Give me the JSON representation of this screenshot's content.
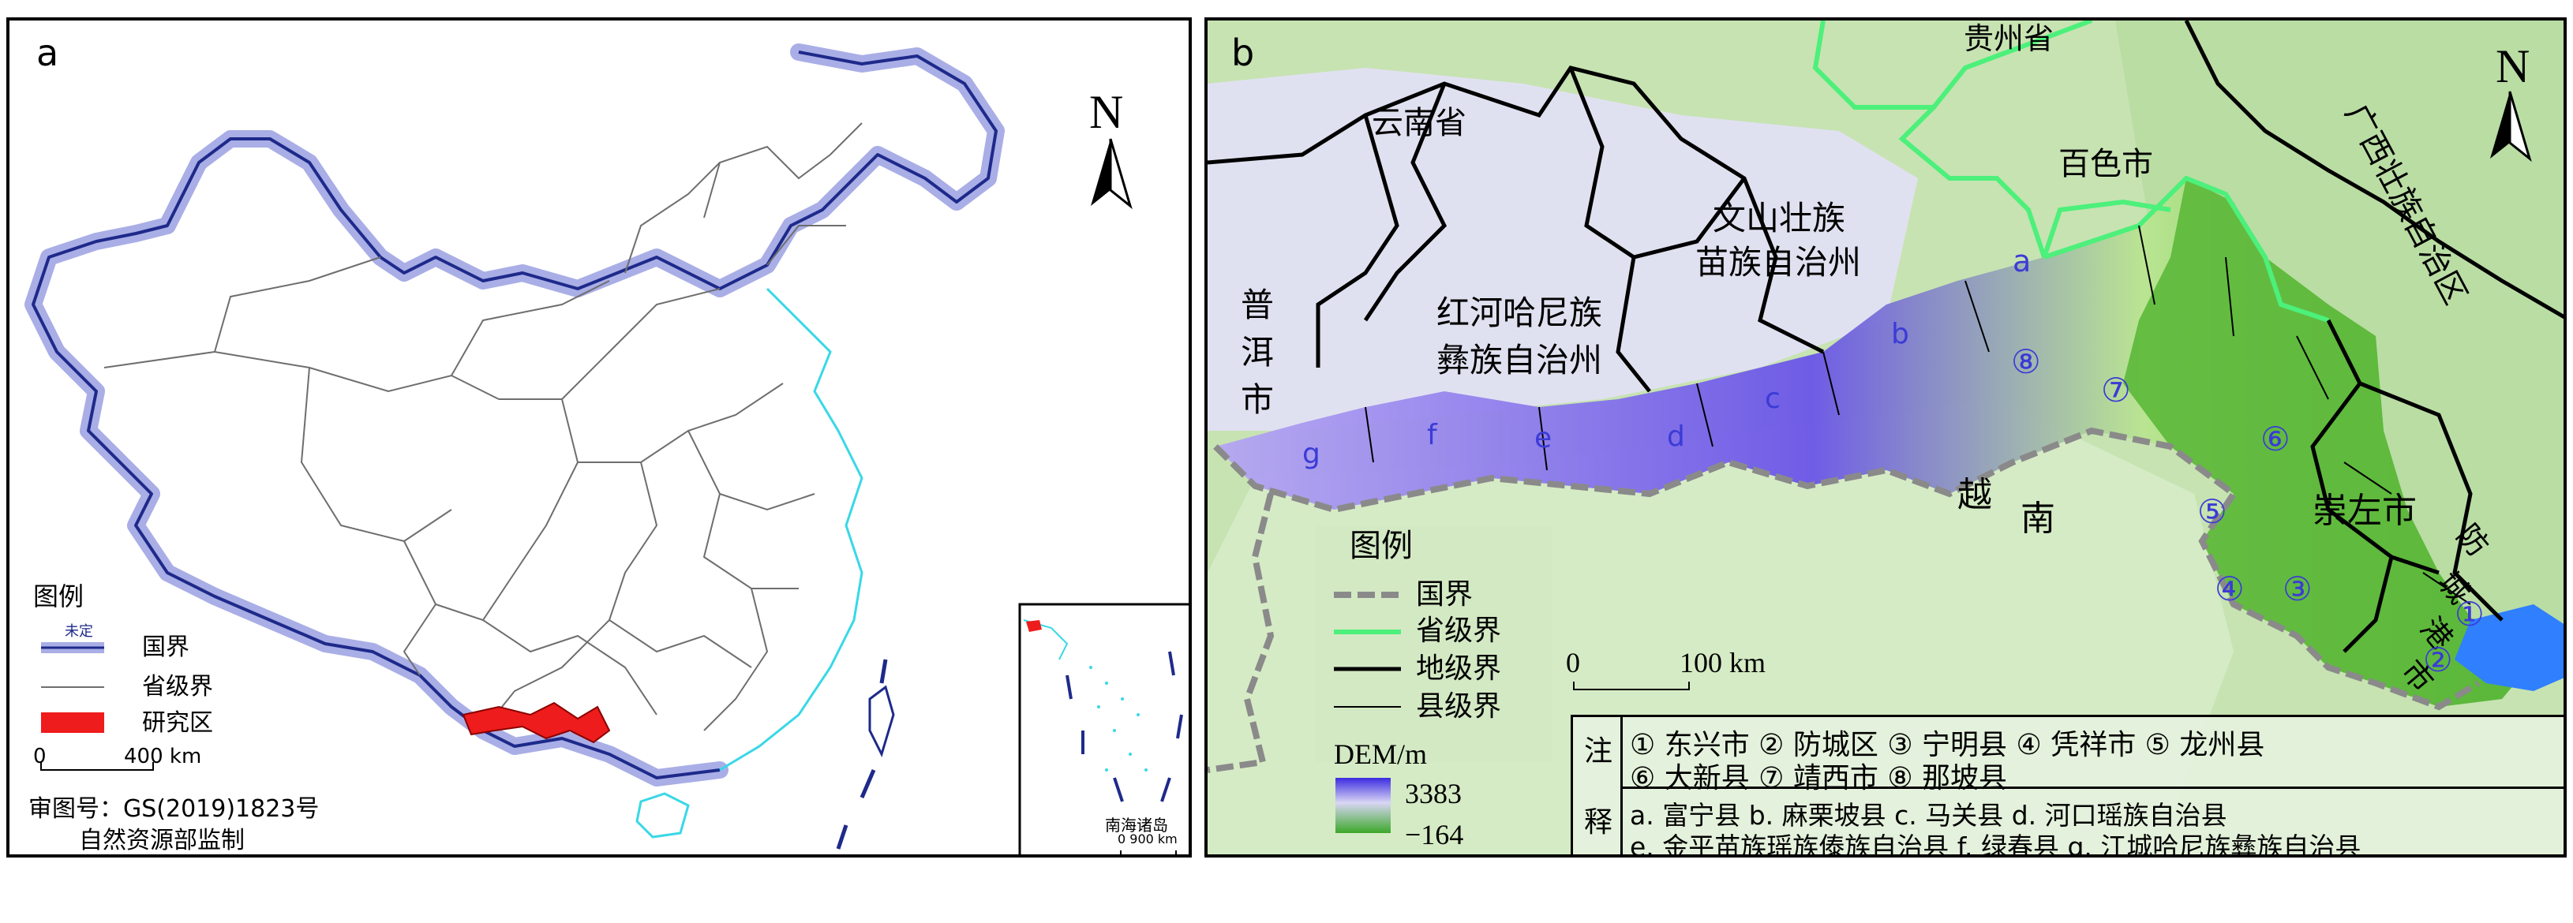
{
  "panel_a": {
    "label": "a",
    "north": "N",
    "legend": {
      "title": "图例",
      "undefined_tag": "未定",
      "items": [
        {
          "label": "国界"
        },
        {
          "label": "省级界"
        },
        {
          "label": "研究区"
        }
      ]
    },
    "scale": {
      "start": "0",
      "end": "400 km"
    },
    "approval": "审图号：GS(2019)1823号",
    "supervisor": "自然资源部监制",
    "inset": {
      "title": "南海诸岛",
      "scale": "0  900 km"
    }
  },
  "panel_b": {
    "label": "b",
    "north": "N",
    "region_labels": {
      "guizhou": "贵州省",
      "yunnan": "云南省",
      "baise": "百色市",
      "guangxi": "广西壮族自治区",
      "wenshan_1": "文山壮族",
      "wenshan_2": "苗族自治州",
      "honghe_1": "红河哈尼族",
      "honghe_2": "彝族自治州",
      "puer_1": "普",
      "puer_2": "洱",
      "puer_3": "市",
      "vietnam_1": "越",
      "vietnam_2": "南",
      "chongzuo": "崇左市",
      "fangcheng_1": "防",
      "fangcheng_2": "城",
      "fangcheng_3": "港",
      "fangcheng_4": "市"
    },
    "county_letters": [
      "a",
      "b",
      "c",
      "d",
      "e",
      "f",
      "g"
    ],
    "county_numbers": [
      "①",
      "②",
      "③",
      "④",
      "⑤",
      "⑥",
      "⑦",
      "⑧"
    ],
    "legend": {
      "title": "图例",
      "items": [
        {
          "label": "国界"
        },
        {
          "label": "省级界"
        },
        {
          "label": "地级界"
        },
        {
          "label": "县级界"
        }
      ],
      "dem_title": "DEM/m",
      "dem_max": "3383",
      "dem_min": "−164"
    },
    "scale": {
      "start": "0",
      "end": "100 km"
    },
    "notes": {
      "label_1": "注",
      "label_2": "释",
      "row_1": "① 东兴市   ② 防城区   ③ 宁明县   ④ 凭祥市   ⑤ 龙州县",
      "row_2": "⑥ 大新县   ⑦ 靖西市   ⑧ 那坡县",
      "row_3": "a. 富宁县  b. 麻栗坡县  c. 马关县  d. 河口瑶族自治县",
      "row_4": "e. 金平苗族瑶族傣族自治县  f. 绿春县  g. 江城哈尼族彝族自治县"
    }
  },
  "colors": {
    "national_border_halo": "#a9aee6",
    "national_border": "#1e2a8a",
    "coastline": "#38d8e6",
    "province_line": "#6e6e6e",
    "study_area": "#ee1c1c",
    "province_border_b": "#4cf07a",
    "prefecture_border": "#000000",
    "international_dash": "#8a8a8a",
    "dem_high": "#3b2be0",
    "dem_low": "#3ca82a",
    "sea": "#2f7fff"
  }
}
